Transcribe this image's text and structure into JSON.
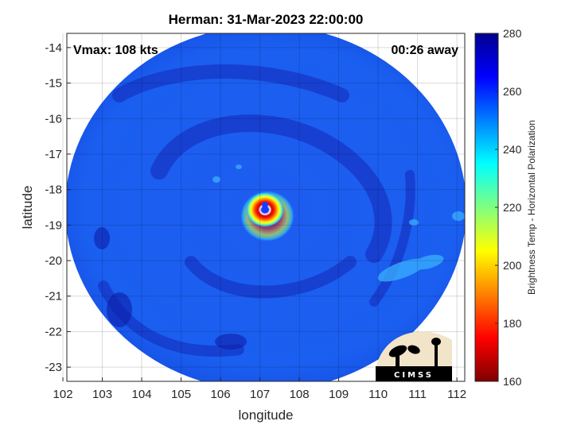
{
  "chart_data": {
    "type": "heatmap",
    "title": "Herman: 31-Mar-2023 22:00:00",
    "xlabel": "longitude",
    "ylabel": "latitude",
    "xlim": [
      102.1,
      112.2
    ],
    "ylim": [
      -23.4,
      -13.6
    ],
    "xticks": [
      102,
      103,
      104,
      105,
      106,
      107,
      108,
      109,
      110,
      111,
      112
    ],
    "yticks": [
      -14,
      -15,
      -16,
      -17,
      -18,
      -19,
      -20,
      -21,
      -22,
      -23
    ],
    "grid": true,
    "annotations": {
      "vmax": "Vmax: 108 kts",
      "time_away": "00:26 away"
    },
    "storm_center": {
      "lon": 107.1,
      "lat": -18.45
    },
    "colorbar": {
      "label": "Brightness Temp - Horizontal Polarization",
      "range": [
        160,
        280
      ],
      "ticks": [
        280,
        260,
        240,
        220,
        200,
        180,
        160
      ],
      "colormap": [
        "#7f0000",
        "#ff0000",
        "#ff8000",
        "#ffff00",
        "#80ff80",
        "#00ffff",
        "#0080ff",
        "#0000ff",
        "#00008f"
      ]
    }
  },
  "logo": {
    "text": "CIMSS"
  }
}
